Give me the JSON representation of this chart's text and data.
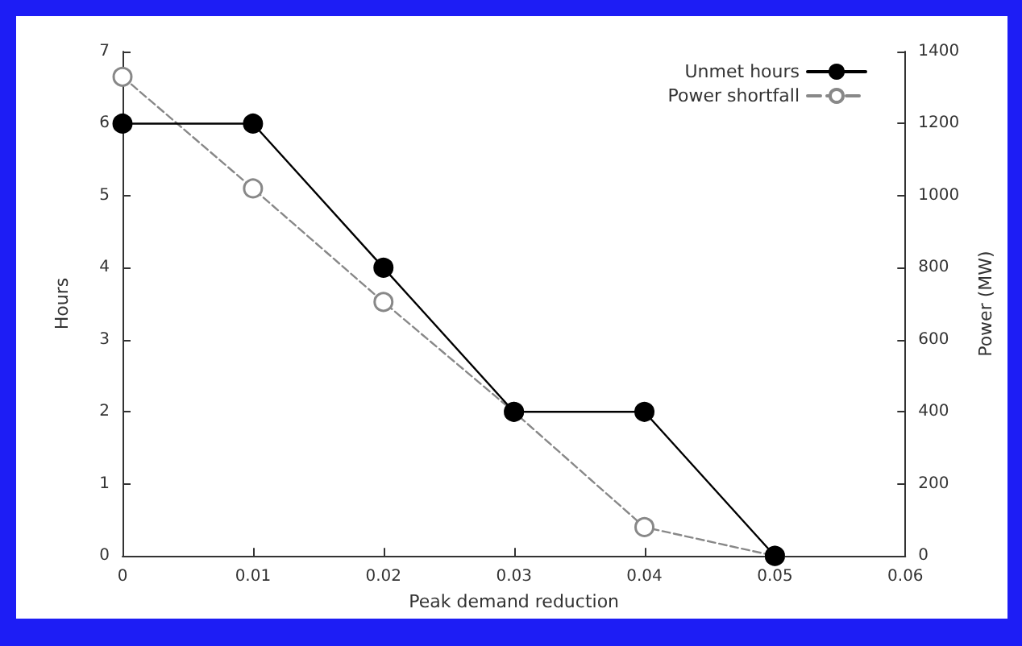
{
  "chart_data": {
    "type": "line",
    "xlabel": "Peak demand reduction",
    "ylabel": "Hours",
    "y2label": "Power (MW)",
    "x": [
      0,
      0.01,
      0.02,
      0.03,
      0.04,
      0.05
    ],
    "series": [
      {
        "name": "Unmet hours",
        "color": "#000000",
        "line_style": "solid",
        "marker": "circle",
        "values": [
          6,
          6,
          4,
          2,
          2,
          0
        ]
      },
      {
        "name": "Power shortfall",
        "color": "#888888",
        "line_style": "dashed",
        "marker": "circle",
        "axis": "y2",
        "values": [
          1330,
          1020,
          705,
          400,
          80,
          0
        ]
      }
    ],
    "xlim": [
      0,
      0.06
    ],
    "xticks": [
      0,
      0.01,
      0.02,
      0.03,
      0.04,
      0.05,
      0.06
    ],
    "ylim": [
      0,
      7
    ],
    "yticks": [
      0,
      1,
      2,
      3,
      4,
      5,
      6,
      7
    ],
    "y2lim": [
      0,
      1400
    ],
    "y2ticks": [
      0,
      200,
      400,
      600,
      800,
      1000,
      1200,
      1400
    ],
    "grid": false,
    "legend": "top right"
  }
}
